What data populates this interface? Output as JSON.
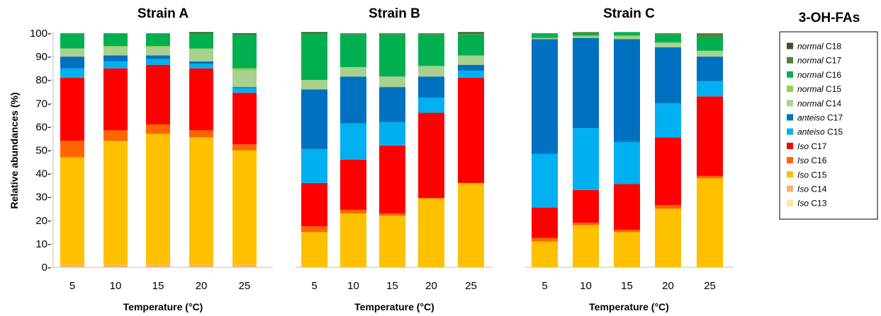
{
  "ylabel": "Relative abundances (%)",
  "legend_title": "3-OH-FAs",
  "y_ticks": [
    "0",
    "10",
    "20",
    "30",
    "40",
    "50",
    "60",
    "70",
    "80",
    "90",
    "100"
  ],
  "legend": [
    {
      "prefix": "normal",
      "suffix": " C18",
      "color": "#375623"
    },
    {
      "prefix": "normal",
      "suffix": " C17",
      "color": "#548235"
    },
    {
      "prefix": "normal",
      "suffix": " C16",
      "color": "#00B050"
    },
    {
      "prefix": "normal",
      "suffix": " C15",
      "color": "#92D050"
    },
    {
      "prefix": "normal",
      "suffix": " C14",
      "color": "#A9D18E"
    },
    {
      "prefix": "anteiso",
      "suffix": " C17",
      "color": "#0070C0"
    },
    {
      "prefix": "anteiso",
      "suffix": " C15",
      "color": "#00B0F0"
    },
    {
      "prefix": "Iso",
      "suffix": " C17",
      "color": "#FF0000"
    },
    {
      "prefix": "Iso",
      "suffix": " C16",
      "color": "#FF6600"
    },
    {
      "prefix": "Iso",
      "suffix": " C15",
      "color": "#FFC000"
    },
    {
      "prefix": "Iso",
      "suffix": " C14",
      "color": "#F4B183"
    },
    {
      "prefix": "Iso",
      "suffix": " C13",
      "color": "#FFE699"
    }
  ],
  "chart_data": [
    {
      "type": "bar",
      "stacked": true,
      "title": "Strain A",
      "xlabel": "Temperature (°C)",
      "ylabel": "Relative abundances (%)",
      "ylim": [
        0,
        100
      ],
      "categories": [
        "5",
        "10",
        "15",
        "20",
        "25"
      ],
      "series": [
        {
          "name": "Iso C13",
          "values": [
            0,
            0,
            0,
            0,
            0
          ]
        },
        {
          "name": "Iso C14",
          "values": [
            1.0,
            1.0,
            1.0,
            1.0,
            1.0
          ]
        },
        {
          "name": "Iso C15",
          "values": [
            46.0,
            53.0,
            56.0,
            54.5,
            49.0
          ]
        },
        {
          "name": "Iso C16",
          "values": [
            7.0,
            4.5,
            4.0,
            3.0,
            2.5
          ]
        },
        {
          "name": "Iso C17",
          "values": [
            27.0,
            26.5,
            25.5,
            26.5,
            22.0
          ]
        },
        {
          "name": "anteiso C15",
          "values": [
            4.0,
            3.0,
            2.5,
            2.0,
            2.0
          ]
        },
        {
          "name": "anteiso C17",
          "values": [
            5.0,
            2.5,
            1.5,
            1.0,
            0.5
          ]
        },
        {
          "name": "normal C14",
          "values": [
            3.5,
            3.5,
            3.5,
            5.0,
            7.0
          ]
        },
        {
          "name": "normal C15",
          "values": [
            0,
            0.5,
            0.5,
            0.5,
            1.0
          ]
        },
        {
          "name": "normal C16",
          "values": [
            6.5,
            5.5,
            5.5,
            6.5,
            14.5
          ]
        },
        {
          "name": "normal C17",
          "values": [
            0,
            0,
            0,
            0,
            0
          ]
        },
        {
          "name": "normal C18",
          "values": [
            0,
            0,
            0,
            0.5,
            0.5
          ]
        }
      ]
    },
    {
      "type": "bar",
      "stacked": true,
      "title": "Strain B",
      "xlabel": "Temperature (°C)",
      "ylim": [
        0,
        100
      ],
      "categories": [
        "5",
        "10",
        "15",
        "20",
        "25"
      ],
      "series": [
        {
          "name": "Iso C13",
          "values": [
            0,
            0,
            0,
            0,
            0
          ]
        },
        {
          "name": "Iso C14",
          "values": [
            0,
            0,
            0,
            0,
            0
          ]
        },
        {
          "name": "Iso C15",
          "values": [
            15.0,
            23.0,
            22.0,
            29.5,
            36.0
          ]
        },
        {
          "name": "Iso C16",
          "values": [
            2.5,
            1.5,
            1.0,
            0,
            0
          ]
        },
        {
          "name": "Iso C17",
          "values": [
            18.5,
            21.5,
            29.0,
            36.5,
            45.0
          ]
        },
        {
          "name": "anteiso C15",
          "values": [
            14.5,
            15.5,
            10.0,
            6.5,
            3.0
          ]
        },
        {
          "name": "anteiso C17",
          "values": [
            25.5,
            20.0,
            15.0,
            9.0,
            2.5
          ]
        },
        {
          "name": "normal C14",
          "values": [
            4.0,
            4.0,
            4.5,
            4.5,
            4.0
          ]
        },
        {
          "name": "normal C15",
          "values": [
            0,
            0,
            0,
            0,
            0
          ]
        },
        {
          "name": "normal C16",
          "values": [
            20.0,
            14.0,
            18.0,
            13.5,
            9.0
          ]
        },
        {
          "name": "normal C17",
          "values": [
            0,
            0.5,
            0.5,
            0.5,
            0.5
          ]
        },
        {
          "name": "normal C18",
          "values": [
            0.5,
            0,
            0,
            0,
            0.5
          ]
        }
      ]
    },
    {
      "type": "bar",
      "stacked": true,
      "title": "Strain C",
      "xlabel": "Temperature (°C)",
      "ylim": [
        0,
        100
      ],
      "categories": [
        "5",
        "10",
        "15",
        "20",
        "25"
      ],
      "series": [
        {
          "name": "Iso C13",
          "values": [
            0,
            0,
            0,
            0,
            0
          ]
        },
        {
          "name": "Iso C14",
          "values": [
            0,
            0,
            0,
            0,
            0
          ]
        },
        {
          "name": "Iso C15",
          "values": [
            11.0,
            18.0,
            15.0,
            25.0,
            38.0
          ]
        },
        {
          "name": "Iso C16",
          "values": [
            1.5,
            1.0,
            1.0,
            1.5,
            1.0
          ]
        },
        {
          "name": "Iso C17",
          "values": [
            13.0,
            14.0,
            19.5,
            29.0,
            34.0
          ]
        },
        {
          "name": "anteiso C15",
          "values": [
            23.0,
            26.5,
            18.0,
            14.5,
            6.5
          ]
        },
        {
          "name": "anteiso C17",
          "values": [
            49.0,
            38.5,
            44.0,
            24.0,
            10.5
          ]
        },
        {
          "name": "normal C14",
          "values": [
            0.5,
            0.5,
            1.0,
            2.0,
            2.5
          ]
        },
        {
          "name": "normal C15",
          "values": [
            0,
            0.5,
            0.5,
            0,
            0
          ]
        },
        {
          "name": "normal C16",
          "values": [
            2.0,
            1.0,
            1.5,
            3.5,
            6.0
          ]
        },
        {
          "name": "normal C17",
          "values": [
            0,
            0.5,
            0,
            0.5,
            1.5
          ]
        },
        {
          "name": "normal C18",
          "values": [
            0,
            0,
            0,
            0,
            0
          ]
        }
      ]
    }
  ]
}
